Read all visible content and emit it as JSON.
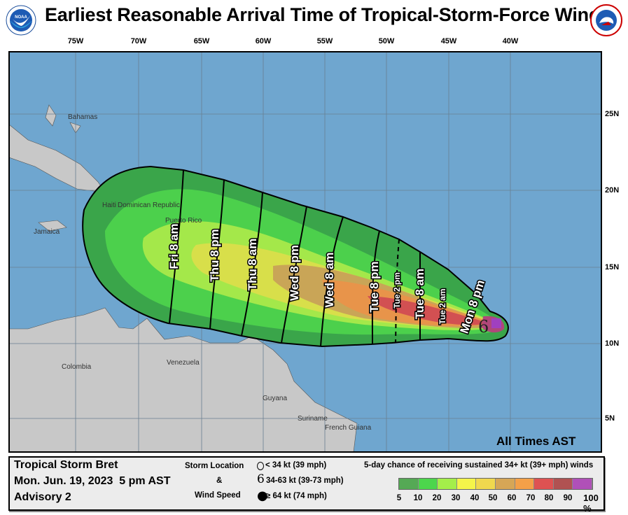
{
  "header": {
    "title": "Earliest Reasonable Arrival Time of Tropical-Storm-Force Winds",
    "left_logo": "NOAA",
    "right_logo": "National Weather Service"
  },
  "map": {
    "longitude_labels": [
      "75W",
      "70W",
      "65W",
      "60W",
      "55W",
      "50W",
      "45W",
      "40W"
    ],
    "latitude_labels": [
      "25N",
      "20N",
      "15N",
      "10N",
      "5N"
    ],
    "place_labels": {
      "bahamas": "Bahamas",
      "jamaica": "Jamaica",
      "haiti": "Haiti",
      "dominican_republic": "Dominican Republic",
      "puerto_rico": "Puerto Rico",
      "colombia": "Colombia",
      "venezuela": "Venezuela",
      "guyana": "Guyana",
      "suriname": "Suriname",
      "french_guiana": "French Guiana"
    },
    "arrival_time_labels": [
      "Fri 8 am",
      "Thu 8 pm",
      "Thu 8 am",
      "Wed 8 pm",
      "Wed 8 am",
      "Tue 8 pm",
      "Tue 2 pm",
      "Tue 8 am",
      "Tue 2 am",
      "Mon 8 pm"
    ],
    "all_times_note": "All Times AST",
    "colors": {
      "ocean": "#6fa6cf",
      "land": "#c8c8c8"
    }
  },
  "legend": {
    "storm_name": "Tropical Storm Bret",
    "issued": "Mon. Jun. 19, 2023  5 pm AST",
    "advisory": "Advisory 2",
    "storm_location_label": "Storm Location",
    "ampersand": "&",
    "wind_speed_label": "Wind Speed",
    "symbols": [
      {
        "icon": "open-circle-icon",
        "label": "< 34 kt (39 mph)"
      },
      {
        "icon": "tropical-storm-icon",
        "label": "34-63 kt (39-73 mph)"
      },
      {
        "icon": "hurricane-icon",
        "label": "≥ 64 kt (74 mph)"
      }
    ],
    "colorbar_title": "5-day chance of receiving sustained 34+ kt (39+ mph) winds",
    "colorbar_ticks": [
      "5",
      "10",
      "20",
      "30",
      "40",
      "50",
      "60",
      "70",
      "80",
      "90",
      "100 %"
    ],
    "colorbar_colors": [
      "#55a955",
      "#4cd64c",
      "#a4ee4a",
      "#f4f44a",
      "#f0d84e",
      "#d6a656",
      "#f4a048",
      "#de5252",
      "#b05252",
      "#b050b8"
    ]
  }
}
